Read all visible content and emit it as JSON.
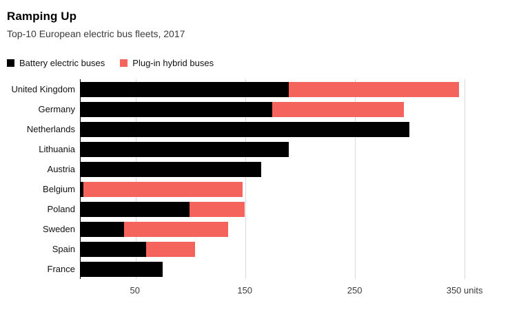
{
  "header": {
    "title": "Ramping Up",
    "subtitle": "Top-10 European electric bus fleets, 2017"
  },
  "legend": [
    {
      "label": "Battery electric buses",
      "color": "#000000"
    },
    {
      "label": "Plug-in hybrid buses",
      "color": "#f4635c"
    }
  ],
  "colors": {
    "battery": "#000000",
    "hybrid": "#f4635c",
    "gridline": "#d8d8d8",
    "axis": "#000000"
  },
  "chart_data": {
    "type": "bar",
    "orientation": "horizontal",
    "stacked": true,
    "title": "Ramping Up",
    "subtitle": "Top-10 European electric bus fleets, 2017",
    "categories": [
      "United Kingdom",
      "Germany",
      "Netherlands",
      "Lithuania",
      "Austria",
      "Belgium",
      "Poland",
      "Sweden",
      "Spain",
      "France"
    ],
    "series": [
      {
        "name": "Battery electric buses",
        "color": "#000000",
        "values": [
          190,
          175,
          300,
          190,
          165,
          3,
          100,
          40,
          60,
          75
        ]
      },
      {
        "name": "Plug-in hybrid buses",
        "color": "#f4635c",
        "values": [
          155,
          120,
          0,
          0,
          0,
          145,
          50,
          95,
          45,
          0
        ]
      }
    ],
    "xlabel": "units",
    "ylabel": "",
    "xlim": [
      0,
      370
    ],
    "xticks": [
      50,
      150,
      250,
      350
    ],
    "xtick_labels": [
      "50",
      "150",
      "250",
      "350 units"
    ],
    "grid": true,
    "legend_position": "top-left"
  }
}
